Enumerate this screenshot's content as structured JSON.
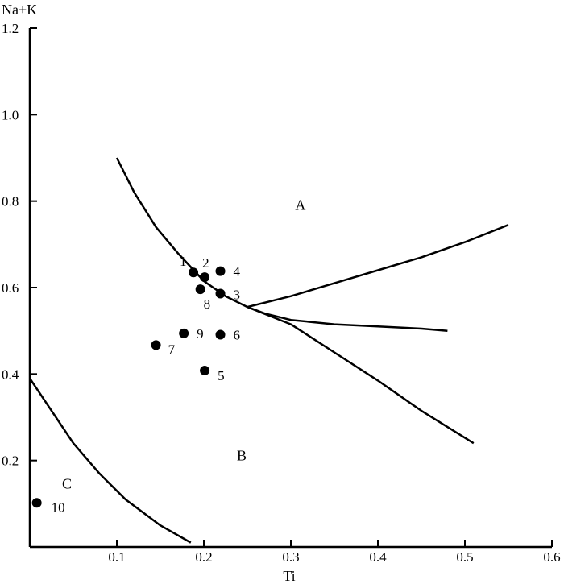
{
  "chart_data": {
    "type": "scatter",
    "title": "",
    "xlabel": "Ti",
    "ylabel": "Na+K",
    "xlim": [
      0,
      0.6
    ],
    "ylim": [
      0,
      1.2
    ],
    "grid": false,
    "x_ticks": [
      {
        "value": 0.1,
        "label": "0.1"
      },
      {
        "value": 0.2,
        "label": "0.2"
      },
      {
        "value": 0.3,
        "label": "0.3"
      },
      {
        "value": 0.4,
        "label": "0.4"
      },
      {
        "value": 0.5,
        "label": "0.5"
      },
      {
        "value": 0.6,
        "label": "0.6"
      }
    ],
    "y_ticks": [
      {
        "value": 0.2,
        "label": "0.2"
      },
      {
        "value": 0.4,
        "label": "0.4"
      },
      {
        "value": 0.6,
        "label": "0.6"
      },
      {
        "value": 0.8,
        "label": "0.8"
      },
      {
        "value": 1.0,
        "label": "1.0"
      },
      {
        "value": 1.2,
        "label": "1.2"
      }
    ],
    "points": [
      {
        "label": "1",
        "x": 0.188,
        "y": 0.635
      },
      {
        "label": "2",
        "x": 0.201,
        "y": 0.624
      },
      {
        "label": "3",
        "x": 0.219,
        "y": 0.586
      },
      {
        "label": "4",
        "x": 0.219,
        "y": 0.638
      },
      {
        "label": "5",
        "x": 0.201,
        "y": 0.408
      },
      {
        "label": "6",
        "x": 0.219,
        "y": 0.491
      },
      {
        "label": "7",
        "x": 0.145,
        "y": 0.467
      },
      {
        "label": "8",
        "x": 0.196,
        "y": 0.596
      },
      {
        "label": "9",
        "x": 0.177,
        "y": 0.494
      },
      {
        "label": "10",
        "x": 0.008,
        "y": 0.102
      }
    ],
    "regions": [
      {
        "label": "A",
        "x": 0.305,
        "y": 0.78
      },
      {
        "label": "B",
        "x": 0.238,
        "y": 0.2
      },
      {
        "label": "C",
        "x": 0.037,
        "y": 0.135
      }
    ],
    "boundary_lines": [
      {
        "points": [
          [
            0.1,
            0.9
          ],
          [
            0.12,
            0.82
          ],
          [
            0.145,
            0.74
          ],
          [
            0.17,
            0.68
          ],
          [
            0.2,
            0.615
          ],
          [
            0.225,
            0.58
          ],
          [
            0.25,
            0.555
          ]
        ]
      },
      {
        "points": [
          [
            0.25,
            0.555
          ],
          [
            0.3,
            0.58
          ],
          [
            0.35,
            0.61
          ],
          [
            0.4,
            0.64
          ],
          [
            0.45,
            0.67
          ],
          [
            0.5,
            0.705
          ],
          [
            0.55,
            0.745
          ]
        ]
      },
      {
        "points": [
          [
            0.25,
            0.555
          ],
          [
            0.27,
            0.54
          ],
          [
            0.3,
            0.525
          ],
          [
            0.35,
            0.515
          ],
          [
            0.4,
            0.51
          ],
          [
            0.45,
            0.505
          ],
          [
            0.48,
            0.5
          ]
        ]
      },
      {
        "points": [
          [
            0.25,
            0.555
          ],
          [
            0.3,
            0.515
          ],
          [
            0.35,
            0.45
          ],
          [
            0.4,
            0.385
          ],
          [
            0.45,
            0.315
          ],
          [
            0.51,
            0.24
          ]
        ]
      },
      {
        "points": [
          [
            0,
            0.39
          ],
          [
            0.02,
            0.33
          ],
          [
            0.05,
            0.24
          ],
          [
            0.08,
            0.17
          ],
          [
            0.11,
            0.11
          ],
          [
            0.15,
            0.05
          ],
          [
            0.185,
            0.01
          ]
        ]
      }
    ]
  }
}
